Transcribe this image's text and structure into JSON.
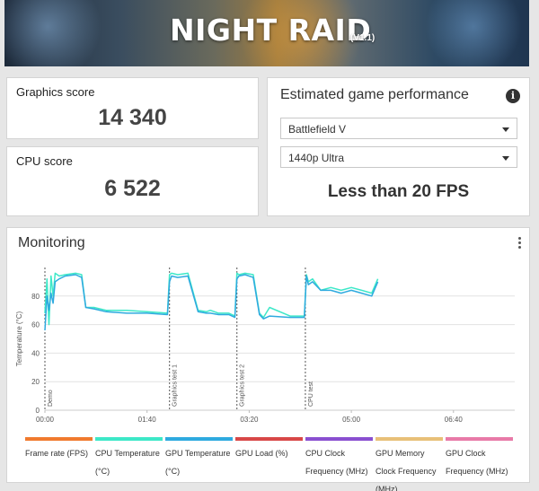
{
  "banner": {
    "title": "NIGHT RAID",
    "version": "(V1.1)"
  },
  "graphics": {
    "label": "Graphics score",
    "value": "14 340"
  },
  "cpu": {
    "label": "CPU score",
    "value": "6 522"
  },
  "performance": {
    "title": "Estimated game performance",
    "info_icon": "info-icon",
    "game_select": "Battlefield V",
    "quality_select": "1440p Ultra",
    "result": "Less than 20 FPS"
  },
  "monitoring": {
    "title": "Monitoring",
    "menu_icon": "kebab-menu-icon",
    "legend": [
      {
        "label": "Frame rate (FPS)",
        "color": "#f07a2e"
      },
      {
        "label": "CPU Temperature (°C)",
        "color": "#3de8c8"
      },
      {
        "label": "GPU Temperature (°C)",
        "color": "#2eaadf"
      },
      {
        "label": "GPU Load (%)",
        "color": "#d84848"
      },
      {
        "label": "CPU Clock Frequency (MHz)",
        "color": "#8a4fd0"
      },
      {
        "label": "GPU Memory Clock Frequency (MHz)",
        "color": "#e8c078"
      },
      {
        "label": "GPU Clock Frequency (MHz)",
        "color": "#e87aa8"
      }
    ]
  },
  "chart_data": {
    "type": "line",
    "title": "",
    "ylabel": "Temperature (°C)",
    "ylim": [
      0,
      100
    ],
    "yticks": [
      "80",
      "60",
      "40",
      "20",
      "0"
    ],
    "xticks": [
      "00:00",
      "01:40",
      "03:20",
      "05:00",
      "06:40"
    ],
    "xlim_seconds": [
      0,
      460
    ],
    "grid": true,
    "markers": [
      {
        "label": "Demo",
        "t": 0
      },
      {
        "label": "Graphics test 1",
        "t": 122
      },
      {
        "label": "Graphics test 2",
        "t": 188
      },
      {
        "label": "CPU test",
        "t": 255
      }
    ],
    "series": [
      {
        "name": "CPU Temperature (°C)",
        "color": "#3de8c8",
        "x": [
          0,
          2,
          4,
          6,
          8,
          10,
          14,
          20,
          30,
          36,
          40,
          48,
          60,
          80,
          100,
          120,
          122,
          124,
          130,
          140,
          150,
          158,
          162,
          170,
          180,
          186,
          188,
          190,
          196,
          204,
          210,
          214,
          220,
          240,
          254,
          256,
          258,
          262,
          270,
          280,
          290,
          300,
          310,
          320,
          326
        ],
        "y": [
          68,
          92,
          60,
          94,
          80,
          96,
          94,
          95,
          96,
          95,
          72,
          72,
          70,
          70,
          69,
          68,
          95,
          96,
          95,
          96,
          70,
          69,
          70,
          68,
          68,
          66,
          96,
          95,
          96,
          95,
          68,
          65,
          72,
          66,
          66,
          95,
          90,
          92,
          84,
          86,
          84,
          86,
          84,
          82,
          92
        ]
      },
      {
        "name": "GPU Temperature (°C)",
        "color": "#2eaadf",
        "x": [
          0,
          2,
          4,
          6,
          8,
          10,
          14,
          20,
          30,
          36,
          40,
          48,
          60,
          80,
          100,
          120,
          122,
          124,
          130,
          140,
          150,
          158,
          162,
          170,
          180,
          186,
          188,
          190,
          196,
          204,
          210,
          214,
          220,
          240,
          254,
          256,
          258,
          262,
          270,
          280,
          290,
          300,
          310,
          320,
          326
        ],
        "y": [
          56,
          80,
          70,
          82,
          75,
          90,
          92,
          94,
          95,
          93,
          72,
          71,
          69,
          68,
          68,
          67,
          90,
          94,
          93,
          94,
          69,
          68,
          68,
          67,
          67,
          65,
          92,
          94,
          95,
          93,
          67,
          64,
          66,
          65,
          65,
          94,
          88,
          90,
          84,
          84,
          82,
          84,
          82,
          80,
          90
        ]
      }
    ]
  }
}
